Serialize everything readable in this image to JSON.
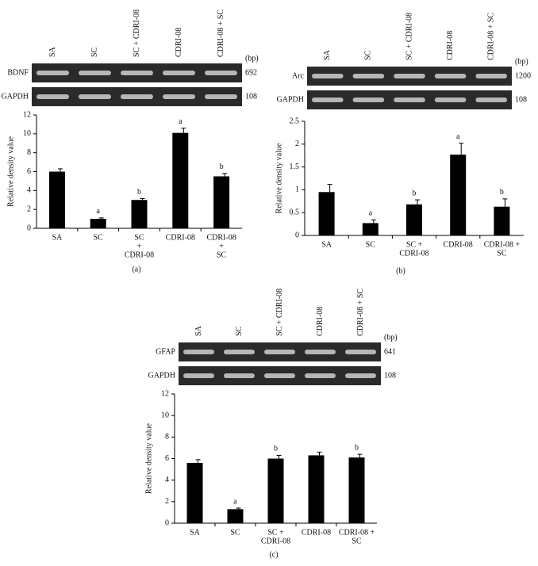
{
  "chart_data": [
    {
      "type": "bar",
      "panel": "(a)",
      "y_label": "Relative density value",
      "color": "#000000",
      "categories": [
        [
          "SA"
        ],
        [
          "SC"
        ],
        [
          "SC",
          "+",
          "CDRI-08"
        ],
        [
          "CDRI-08"
        ],
        [
          "CDRI-08",
          "+",
          "SC"
        ]
      ],
      "values": [
        6.0,
        1.0,
        3.0,
        10.1,
        5.5
      ],
      "errors": [
        0.3,
        0.1,
        0.15,
        0.5,
        0.3
      ],
      "annotations": [
        null,
        "a",
        "b",
        "a",
        "b"
      ],
      "ylim": [
        0,
        12
      ],
      "yticks": [
        0,
        2,
        4,
        6,
        8,
        10,
        12
      ],
      "gel": {
        "lanes": [
          "SA",
          "SC",
          "SC + CDRI-08",
          "CDRI-08",
          "CDRI-08 + SC"
        ],
        "unit": "(bp)",
        "rows": [
          {
            "name": "BDNF",
            "size": 692
          },
          {
            "name": "GAPDH",
            "size": 108
          }
        ]
      }
    },
    {
      "type": "bar",
      "panel": "(b)",
      "y_label": "Relative density value",
      "color": "#000000",
      "categories": [
        [
          "SA"
        ],
        [
          "SC"
        ],
        [
          "SC +",
          "CDRI-08"
        ],
        [
          "CDRI-08"
        ],
        [
          "CDRI-08 +",
          "SC"
        ]
      ],
      "values": [
        0.95,
        0.27,
        0.68,
        1.77,
        0.63
      ],
      "errors": [
        0.17,
        0.07,
        0.1,
        0.25,
        0.17
      ],
      "annotations": [
        null,
        "a",
        "b",
        "a",
        "b"
      ],
      "ylim": [
        0,
        2.5
      ],
      "yticks": [
        0,
        0.5,
        1,
        1.5,
        2,
        2.5
      ],
      "gel": {
        "lanes": [
          "SA",
          "SC",
          "SC + CDRI-08",
          "CDRI-08",
          "CDRI-08 + SC"
        ],
        "unit": "(bp)",
        "rows": [
          {
            "name": "Arc",
            "size": 1200
          },
          {
            "name": "GAPDH",
            "size": 108
          }
        ]
      }
    },
    {
      "type": "bar",
      "panel": "(c)",
      "y_label": "Relative density value",
      "color": "#000000",
      "categories": [
        [
          "SA"
        ],
        [
          "SC"
        ],
        [
          "SC +",
          "CDRI-08"
        ],
        [
          "CDRI-08"
        ],
        [
          "CDRI-08 +",
          "SC"
        ]
      ],
      "values": [
        5.6,
        1.3,
        6.0,
        6.3,
        6.1
      ],
      "errors": [
        0.3,
        0.1,
        0.3,
        0.3,
        0.3
      ],
      "annotations": [
        null,
        "a",
        "b",
        null,
        "b"
      ],
      "ylim": [
        0,
        12
      ],
      "yticks": [
        0,
        2,
        4,
        6,
        8,
        10,
        12
      ],
      "gel": {
        "lanes": [
          "SA",
          "SC",
          "SC + CDRI-08",
          "CDRI-08",
          "CDRI-08 + SC"
        ],
        "unit": "(bp)",
        "rows": [
          {
            "name": "GFAP",
            "size": 641
          },
          {
            "name": "GAPDH",
            "size": 108
          }
        ]
      }
    }
  ]
}
